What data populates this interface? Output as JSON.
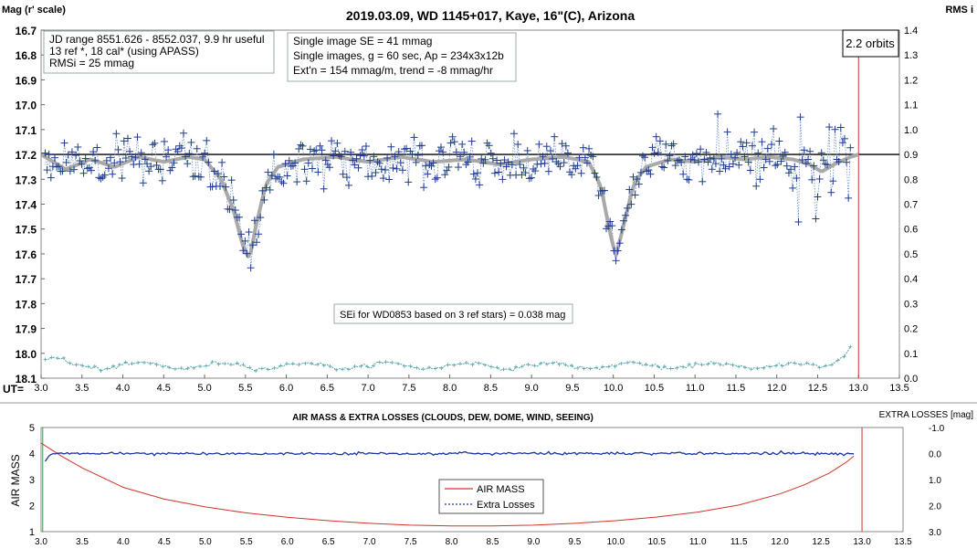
{
  "chart_data": [
    {
      "type": "scatter",
      "title": "2019.03.09, WD 1145+017, Kaye, 16\"(C), Arizona",
      "ylabel": "Mag (r' scale)",
      "y2label": "RMS i",
      "xlabel_prefix": "UT=",
      "xlim": [
        3.0,
        13.5
      ],
      "ylim": [
        16.7,
        18.1
      ],
      "y2lim": [
        0.0,
        1.4
      ],
      "y_inverted": true,
      "x_ticks": [
        "3.0",
        "3.5",
        "4.0",
        "4.5",
        "5.0",
        "5.5",
        "6.0",
        "6.5",
        "7.0",
        "7.5",
        "8.0",
        "8.5",
        "9.0",
        "9.5",
        "10.0",
        "10.5",
        "11.0",
        "11.5",
        "12.0",
        "12.5",
        "13.0",
        "13.5"
      ],
      "y_ticks": [
        "16.7",
        "16.8",
        "16.9",
        "17.0",
        "17.1",
        "17.2",
        "17.3",
        "17.4",
        "17.5",
        "17.6",
        "17.7",
        "17.8",
        "17.9",
        "18.0",
        "18.1"
      ],
      "y2_ticks": [
        "1.4",
        "1.3",
        "1.2",
        "1.1",
        "1.0",
        "0.9",
        "0.8",
        "0.7",
        "0.6",
        "0.5",
        "0.4",
        "0.3",
        "0.2",
        "0.1",
        "0.0"
      ],
      "reference_line_mag": 17.2,
      "vertical_line_x": 13.0,
      "annotations": {
        "box1": [
          "JD range 8551.626 - 8552.037, 9.9 hr useful",
          "13 ref *, 18 cal* (using APASS)",
          "RMSi = 25 mmag"
        ],
        "box2": [
          "Single image SE = 41 mmag",
          "Single images, g = 60 sec, Ap = 234x3x12b",
          "Ext'n = 154 mmag/m, trend = -8 mmag/hr"
        ],
        "box3": "2.2 orbits",
        "note": "SEi for WD0853 based on 3 ref stars) = 0.038 mag"
      },
      "model_curve": {
        "baseline": [
          [
            3.0,
            17.2
          ],
          [
            3.3,
            17.26
          ],
          [
            3.6,
            17.22
          ],
          [
            3.9,
            17.25
          ],
          [
            4.2,
            17.21
          ],
          [
            4.5,
            17.23
          ],
          [
            4.8,
            17.21
          ],
          [
            5.0,
            17.22
          ],
          [
            5.2,
            17.3
          ],
          [
            5.35,
            17.42
          ],
          [
            5.48,
            17.58
          ],
          [
            5.55,
            17.62
          ],
          [
            5.62,
            17.5
          ],
          [
            5.75,
            17.32
          ],
          [
            5.9,
            17.25
          ],
          [
            6.2,
            17.22
          ],
          [
            6.6,
            17.21
          ],
          [
            7.0,
            17.23
          ],
          [
            7.4,
            17.21
          ],
          [
            7.8,
            17.23
          ],
          [
            8.2,
            17.22
          ],
          [
            8.6,
            17.24
          ],
          [
            9.0,
            17.22
          ],
          [
            9.4,
            17.21
          ],
          [
            9.7,
            17.23
          ],
          [
            9.85,
            17.33
          ],
          [
            9.95,
            17.5
          ],
          [
            10.03,
            17.61
          ],
          [
            10.1,
            17.52
          ],
          [
            10.25,
            17.32
          ],
          [
            10.4,
            17.25
          ],
          [
            10.7,
            17.22
          ],
          [
            11.0,
            17.23
          ],
          [
            11.3,
            17.21
          ],
          [
            11.6,
            17.22
          ],
          [
            11.9,
            17.21
          ],
          [
            12.2,
            17.22
          ],
          [
            12.4,
            17.24
          ],
          [
            12.55,
            17.27
          ],
          [
            12.7,
            17.24
          ],
          [
            12.9,
            17.21
          ],
          [
            13.0,
            17.2
          ]
        ]
      },
      "series": [
        {
          "name": "target",
          "color": "#1f3d8f",
          "dips": [
            {
              "center": 5.55,
              "depth": 0.42,
              "width": 0.12
            },
            {
              "center": 10.05,
              "depth": 0.42,
              "width": 0.1
            }
          ],
          "x_start": 3.05,
          "x_end": 12.9
        },
        {
          "name": "rms",
          "color": "#5aa7ab",
          "level": 0.05,
          "rise_start": 12.5,
          "rise_end_level": 0.13,
          "x_start": 3.05,
          "x_end": 12.9
        }
      ]
    },
    {
      "type": "line",
      "title": "AIR MASS & EXTRA LOSSES (CLOUDS, DEW, DOME, WIND, SEEING)",
      "ylabel": "AIR MASS",
      "y2label": "EXTRA LOSSES [mag]",
      "xlim": [
        3.0,
        13.5
      ],
      "ylim": [
        1,
        5
      ],
      "y2lim": [
        -1.0,
        3.0
      ],
      "x_ticks": [
        "3.0",
        "3.5",
        "4.0",
        "4.5",
        "5.0",
        "5.5",
        "6.0",
        "6.5",
        "7.0",
        "7.5",
        "8.0",
        "8.5",
        "9.0",
        "9.5",
        "10.0",
        "10.5",
        "11.0",
        "11.5",
        "12.0",
        "12.5",
        "13.0",
        "13.5"
      ],
      "y_ticks": [
        "5",
        "4",
        "3",
        "2",
        "1"
      ],
      "y2_ticks": [
        "-1.0",
        "0.0",
        "1.0",
        "2.0",
        "3.0"
      ],
      "vertical_line_x": 13.0,
      "legend_placement": "center",
      "series": [
        {
          "name": "AIR MASS",
          "color": "#d0342c",
          "x": [
            3.0,
            3.25,
            3.5,
            4.0,
            4.5,
            5.0,
            5.5,
            6.0,
            6.5,
            7.0,
            7.5,
            8.0,
            8.5,
            9.0,
            9.5,
            10.0,
            10.5,
            11.0,
            11.5,
            12.0,
            12.3,
            12.6,
            12.8,
            12.9
          ],
          "y": [
            4.4,
            3.9,
            3.45,
            2.7,
            2.25,
            1.95,
            1.72,
            1.55,
            1.42,
            1.32,
            1.25,
            1.22,
            1.22,
            1.25,
            1.32,
            1.42,
            1.56,
            1.75,
            2.02,
            2.45,
            2.8,
            3.25,
            3.65,
            3.9
          ]
        },
        {
          "name": "Extra Losses",
          "color": "#1a33a0",
          "level": 0.0,
          "x_start": 3.05,
          "x_end": 12.9
        }
      ]
    }
  ]
}
